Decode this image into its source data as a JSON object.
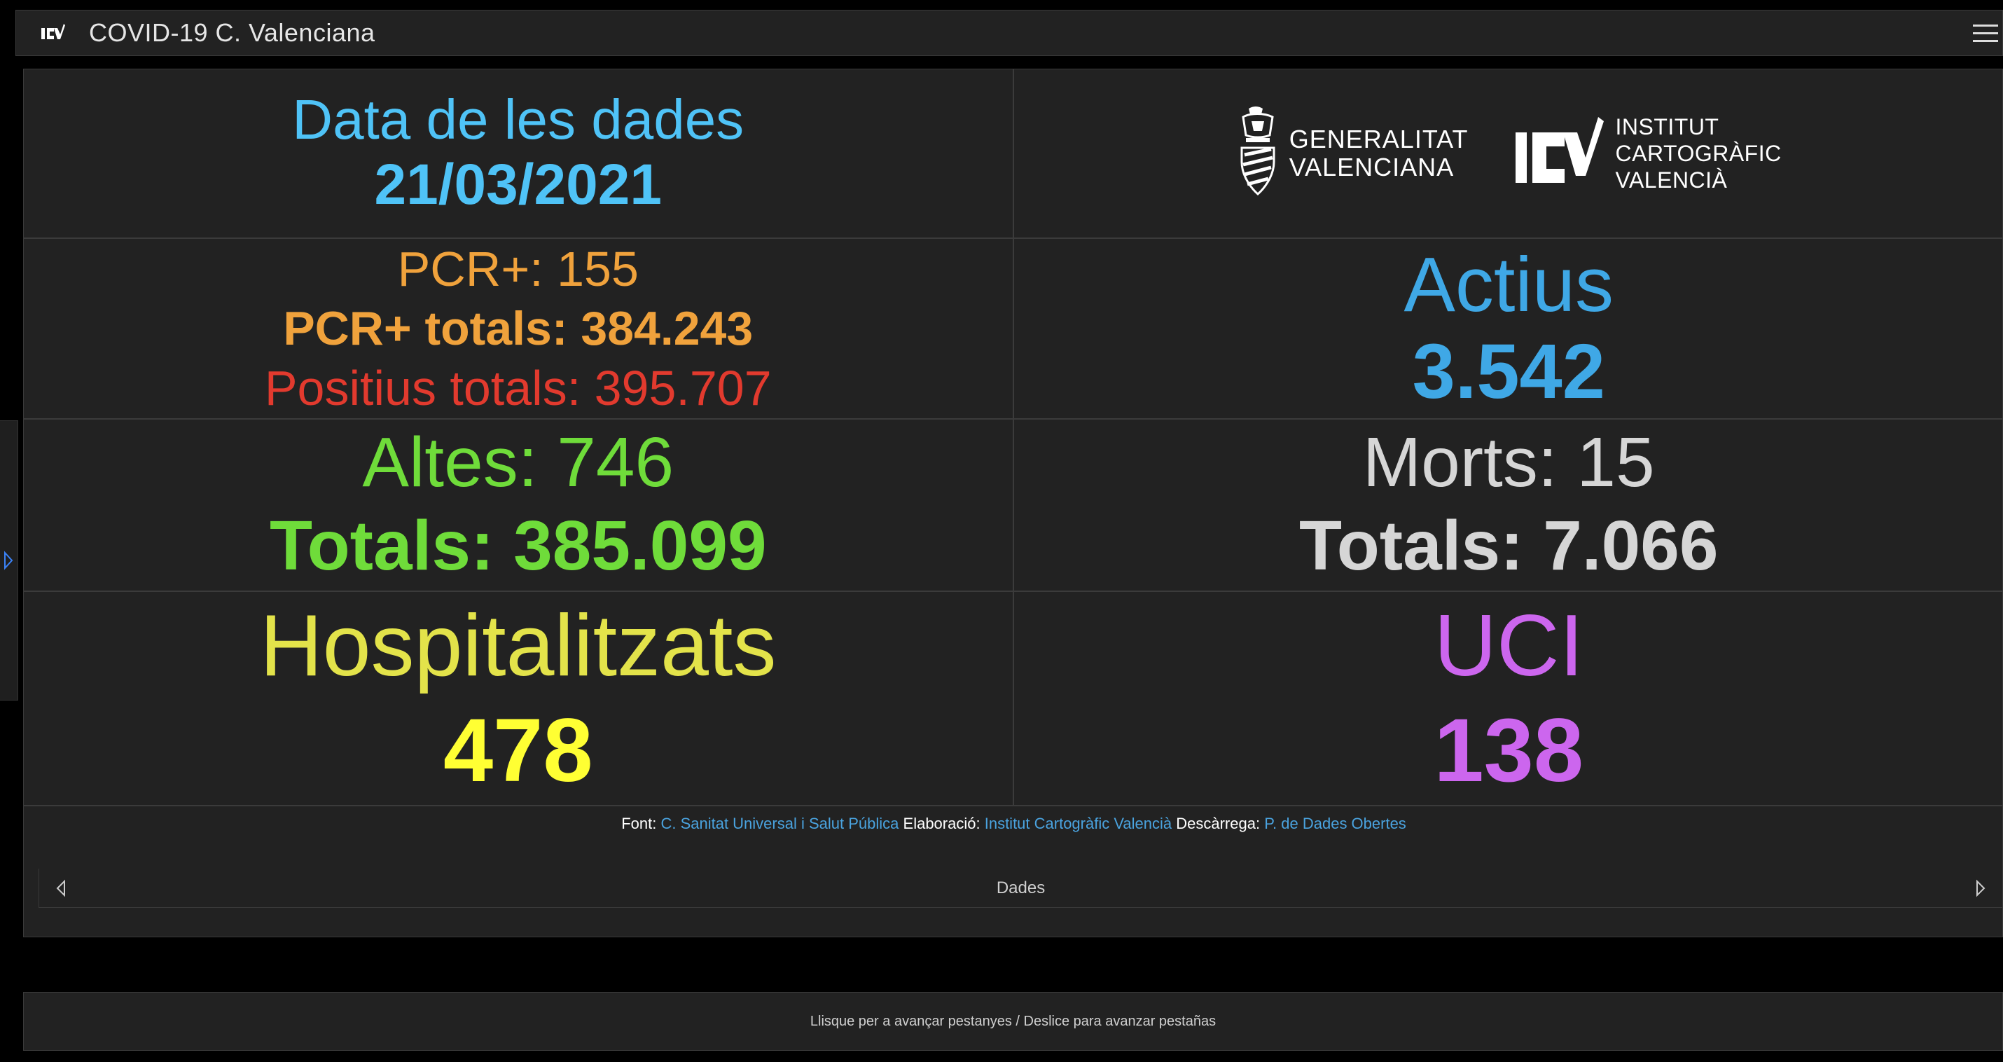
{
  "header": {
    "title": "COVID-19 C. Valenciana",
    "logo_icon": "icv-logo-icon",
    "menu_icon": "hamburger-menu-icon"
  },
  "date": {
    "label": "Data de les dades",
    "value": "21/03/2021"
  },
  "logos": {
    "gva_line1": "GENERALITAT",
    "gva_line2": "VALENCIANA",
    "icv_line1": "INSTITUT",
    "icv_line2": "CARTOGRÀFIC",
    "icv_line3": "VALENCIÀ"
  },
  "pcr": {
    "daily": "PCR+: 155",
    "total": "PCR+ totals: 384.243",
    "positives_total": "Positius totals: 395.707"
  },
  "actius": {
    "label": "Actius",
    "value": "3.542"
  },
  "altes": {
    "label": "Altes: 746",
    "total": "Totals: 385.099"
  },
  "morts": {
    "label": "Morts: 15",
    "total": "Totals: 7.066"
  },
  "hospitalitzats": {
    "label": "Hospitalitzats",
    "value": "478"
  },
  "uci": {
    "label": "UCI",
    "value": "138"
  },
  "credits": {
    "source_label": "Font:",
    "source_link": "C. Sanitat Universal i Salut Pública",
    "elab_label": "Elaboració:",
    "elab_link": "Institut Cartogràfic Valencià",
    "download_label": "Descàrrega:",
    "download_link": "P. de Dades Obertes"
  },
  "tabnav": {
    "label": "Dades"
  },
  "footer": {
    "hint": "Llisque per a avançar pestanyes / Deslice para avanzar pestañas"
  },
  "colors": {
    "date": "#4fc3f7",
    "pcr": "#f0a23c",
    "positives": "#e23a2e",
    "actius": "#3fa8e6",
    "altes": "#6fdc3a",
    "morts": "#d6d6d6",
    "hospitalitzats": "#e3e34a",
    "uci": "#cc66ee"
  }
}
